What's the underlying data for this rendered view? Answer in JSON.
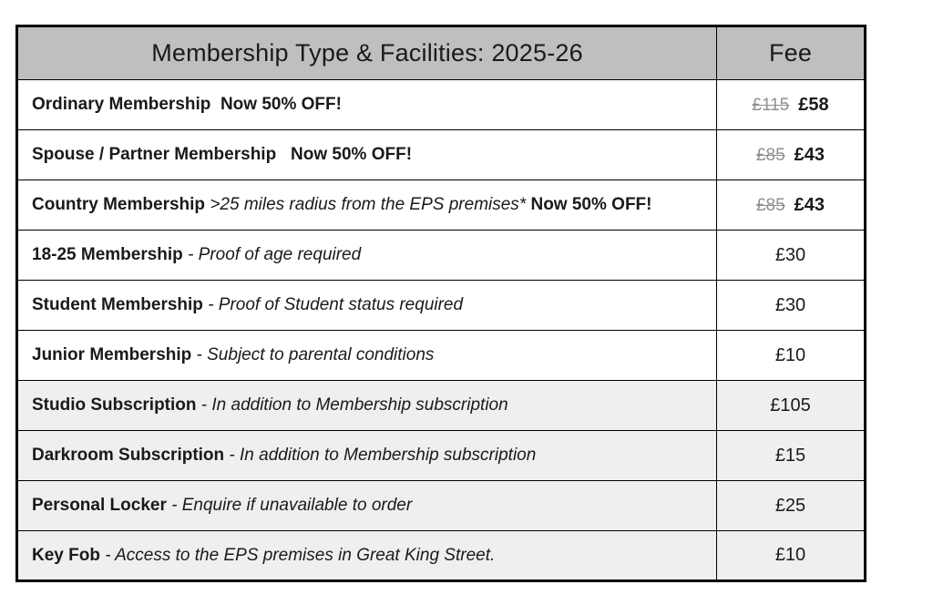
{
  "table": {
    "header": {
      "type_label": "Membership Type & Facilities: 2025-26",
      "fee_label": "Fee"
    },
    "colors": {
      "header_bg": "#bfbfbf",
      "shaded_row_bg": "#efefef",
      "old_fee_color": "#8f8f8f",
      "text_color": "#1a1a1a",
      "border_color": "#000000"
    },
    "rows": [
      {
        "segments": [
          {
            "text": "Ordinary Membership  Now 50% OFF!",
            "style": "bold"
          }
        ],
        "old_fee": "£115",
        "fee": "£58",
        "shaded": false
      },
      {
        "segments": [
          {
            "text": "Spouse / Partner Membership   Now 50% OFF!",
            "style": "bold"
          }
        ],
        "old_fee": "£85",
        "fee": "£43",
        "shaded": false
      },
      {
        "segments": [
          {
            "text": "Country Membership ",
            "style": "bold"
          },
          {
            "text": ">25 miles radius from the EPS premises* ",
            "style": "italic"
          },
          {
            "text": "Now 50% OFF!",
            "style": "bold"
          }
        ],
        "old_fee": "£85",
        "fee": "£43",
        "shaded": false
      },
      {
        "segments": [
          {
            "text": "18-25 Membership ",
            "style": "bold"
          },
          {
            "text": "- Proof of age required",
            "style": "italic"
          }
        ],
        "fee": "£30",
        "shaded": false
      },
      {
        "segments": [
          {
            "text": "Student Membership ",
            "style": "bold"
          },
          {
            "text": "- Proof of Student status required",
            "style": "italic"
          }
        ],
        "fee": "£30",
        "shaded": false
      },
      {
        "segments": [
          {
            "text": "Junior Membership ",
            "style": "bold"
          },
          {
            "text": "- Subject to parental conditions",
            "style": "italic"
          }
        ],
        "fee": "£10",
        "shaded": false
      },
      {
        "segments": [
          {
            "text": "Studio Subscription ",
            "style": "bold"
          },
          {
            "text": "- In addition to Membership subscription",
            "style": "italic"
          }
        ],
        "fee": "£105",
        "shaded": true
      },
      {
        "segments": [
          {
            "text": "Darkroom Subscription ",
            "style": "bold"
          },
          {
            "text": "- In addition to Membership subscription",
            "style": "italic"
          }
        ],
        "fee": "£15",
        "shaded": true
      },
      {
        "segments": [
          {
            "text": "Personal Locker ",
            "style": "bold"
          },
          {
            "text": "- Enquire if unavailable to order",
            "style": "italic"
          }
        ],
        "fee": "£25",
        "shaded": true
      },
      {
        "segments": [
          {
            "text": "Key Fob ",
            "style": "bold"
          },
          {
            "text": "- Access to the EPS premises in Great King Street.",
            "style": "italic"
          }
        ],
        "fee": "£10",
        "shaded": true
      }
    ]
  }
}
